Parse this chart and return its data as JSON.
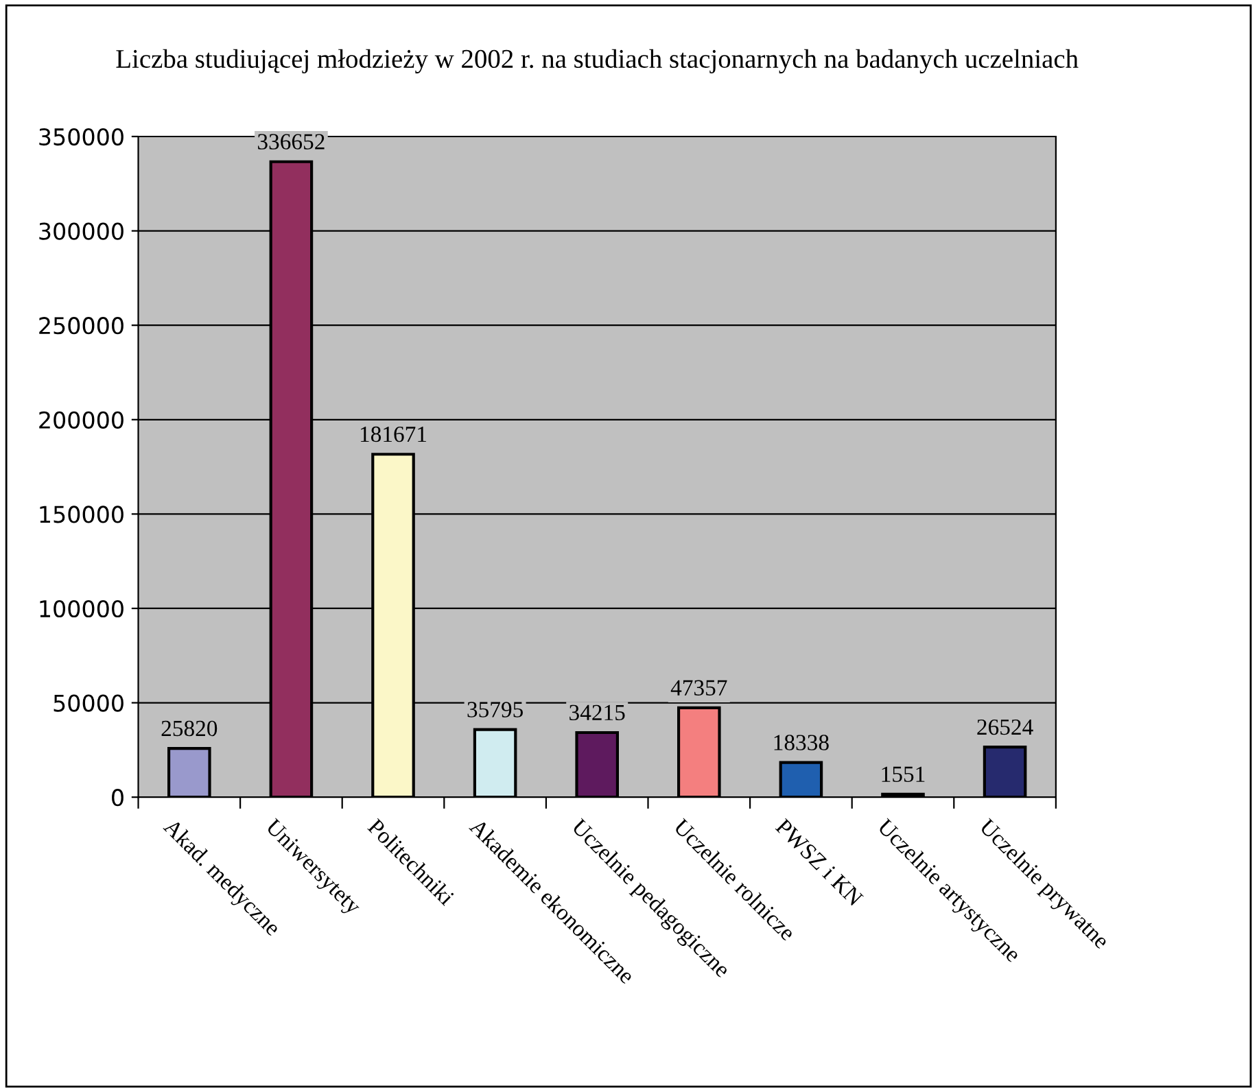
{
  "chart_data": {
    "type": "bar",
    "title": "Liczba studiującej młodzieży w 2002 r. na studiach stacjonarnych na badanych uczelniach",
    "categories": [
      "Akad. medyczne",
      "Uniwersytety",
      "Politechniki",
      "Akademie ekonomiczne",
      "Uczelnie pedagogiczne",
      "Uczelnie rolnicze",
      "PWSZ i KN",
      "Uczelnie artystyczne",
      "Uczelnie prywatne"
    ],
    "values": [
      25820,
      336652,
      181671,
      35795,
      34215,
      47357,
      18338,
      1551,
      26524
    ],
    "colors": [
      "#9999cc",
      "#922f5e",
      "#fbf7c8",
      "#d0ecf0",
      "#5e1a5e",
      "#f47f7f",
      "#1f5faf",
      "#111111",
      "#262a6e"
    ],
    "ylim": [
      0,
      350000
    ],
    "yticks": [
      0,
      50000,
      100000,
      150000,
      200000,
      250000,
      300000,
      350000
    ],
    "grid": "y",
    "legend": false,
    "data_labels": true
  }
}
